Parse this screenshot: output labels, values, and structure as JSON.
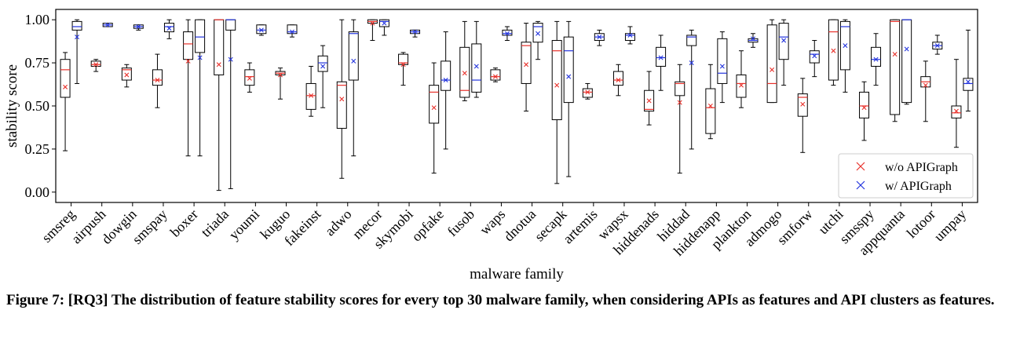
{
  "chart_data": {
    "type": "box",
    "ylabel": "stability score",
    "xlabel": "malware family",
    "ylim": [
      -0.06,
      1.06
    ],
    "yticks": [
      "0.00",
      "0.25",
      "0.50",
      "0.75",
      "1.00"
    ],
    "ytick_values": [
      0,
      0.25,
      0.5,
      0.75,
      1.0
    ],
    "legend": {
      "placement": "lower-right",
      "entries": [
        {
          "label": "w/o APIGraph",
          "color": "#e8302a"
        },
        {
          "label": "w/ APIGraph",
          "color": "#2233dd"
        }
      ]
    },
    "categories": [
      "smsreg",
      "airpush",
      "dowgin",
      "smspay",
      "boxer",
      "triada",
      "youmi",
      "kuguo",
      "fakeinst",
      "adwo",
      "mecor",
      "skymobi",
      "opfake",
      "fusob",
      "waps",
      "dnotua",
      "secapk",
      "artemis",
      "wapsx",
      "hiddenads",
      "hiddad",
      "hiddenapp",
      "plankton",
      "admogo",
      "smforw",
      "utchi",
      "smsspy",
      "appquanta",
      "lotoor",
      "umpay"
    ],
    "series": [
      {
        "name": "w/o APIGraph",
        "color": "#e8302a",
        "boxes": [
          [
            0.24,
            0.55,
            0.71,
            0.77,
            0.81,
            0.61
          ],
          [
            0.7,
            0.73,
            0.74,
            0.76,
            0.77,
            0.74
          ],
          [
            0.61,
            0.65,
            0.71,
            0.72,
            0.74,
            0.68
          ],
          [
            0.49,
            0.62,
            0.65,
            0.71,
            0.8,
            0.65
          ],
          [
            0.21,
            0.77,
            0.86,
            0.93,
            1.0,
            0.76
          ],
          [
            0.01,
            0.68,
            1.0,
            1.0,
            1.0,
            0.74
          ],
          [
            0.58,
            0.62,
            0.67,
            0.71,
            0.75,
            0.66
          ],
          [
            0.54,
            0.68,
            0.69,
            0.7,
            0.72,
            0.68
          ],
          [
            0.44,
            0.48,
            0.56,
            0.63,
            0.73,
            0.56
          ],
          [
            0.08,
            0.37,
            0.62,
            0.64,
            1.0,
            0.54
          ],
          [
            0.88,
            0.98,
            0.99,
            1.0,
            1.0,
            0.98
          ],
          [
            0.62,
            0.74,
            0.75,
            0.8,
            0.81,
            0.74
          ],
          [
            0.11,
            0.4,
            0.58,
            0.62,
            0.75,
            0.49
          ],
          [
            0.53,
            0.55,
            0.59,
            0.84,
            0.99,
            0.69
          ],
          [
            0.64,
            0.65,
            0.67,
            0.71,
            0.72,
            0.67
          ],
          [
            0.47,
            0.63,
            0.85,
            0.87,
            0.98,
            0.74
          ],
          [
            0.05,
            0.42,
            0.82,
            0.88,
            0.99,
            0.62
          ],
          [
            0.54,
            0.55,
            0.58,
            0.6,
            0.63,
            0.58
          ],
          [
            0.56,
            0.62,
            0.65,
            0.7,
            0.74,
            0.65
          ],
          [
            0.39,
            0.47,
            0.48,
            0.59,
            0.7,
            0.53
          ],
          [
            0.11,
            0.56,
            0.63,
            0.64,
            0.74,
            0.52
          ],
          [
            0.31,
            0.34,
            0.49,
            0.6,
            0.74,
            0.5
          ],
          [
            0.49,
            0.55,
            0.63,
            0.68,
            0.82,
            0.62
          ],
          [
            0.52,
            0.52,
            0.63,
            0.97,
            1.0,
            0.71
          ],
          [
            0.23,
            0.44,
            0.55,
            0.57,
            0.66,
            0.51
          ],
          [
            0.62,
            0.65,
            0.93,
            1.0,
            1.0,
            0.82
          ],
          [
            0.3,
            0.43,
            0.5,
            0.58,
            0.64,
            0.49
          ],
          [
            0.41,
            0.45,
            0.99,
            1.0,
            1.0,
            0.8
          ],
          [
            0.41,
            0.61,
            0.64,
            0.67,
            0.76,
            0.62
          ],
          [
            0.26,
            0.43,
            0.46,
            0.5,
            0.77,
            0.47
          ]
        ]
      },
      {
        "name": "w/ APIGraph",
        "color": "#2233dd",
        "boxes": [
          [
            0.63,
            0.94,
            0.96,
            0.99,
            1.0,
            0.9
          ],
          [
            0.96,
            0.96,
            0.97,
            0.98,
            0.98,
            0.97
          ],
          [
            0.94,
            0.95,
            0.96,
            0.97,
            0.97,
            0.96
          ],
          [
            0.89,
            0.93,
            0.96,
            0.98,
            1.0,
            0.95
          ],
          [
            0.21,
            0.81,
            0.9,
            1.0,
            1.0,
            0.78
          ],
          [
            0.02,
            0.94,
            1.0,
            1.0,
            1.0,
            0.77
          ],
          [
            0.91,
            0.92,
            0.94,
            0.97,
            0.97,
            0.94
          ],
          [
            0.9,
            0.92,
            0.93,
            0.97,
            0.97,
            0.93
          ],
          [
            0.49,
            0.7,
            0.75,
            0.79,
            0.85,
            0.73
          ],
          [
            0.21,
            0.65,
            0.92,
            0.93,
            1.0,
            0.76
          ],
          [
            0.91,
            0.96,
            0.99,
            1.0,
            1.0,
            0.98
          ],
          [
            0.9,
            0.92,
            0.93,
            0.94,
            0.94,
            0.93
          ],
          [
            0.25,
            0.59,
            0.65,
            0.76,
            0.93,
            0.65
          ],
          [
            0.55,
            0.58,
            0.65,
            0.86,
            0.99,
            0.73
          ],
          [
            0.88,
            0.91,
            0.92,
            0.94,
            0.96,
            0.92
          ],
          [
            0.77,
            0.87,
            0.96,
            0.98,
            0.99,
            0.92
          ],
          [
            0.09,
            0.52,
            0.82,
            0.9,
            0.99,
            0.67
          ],
          [
            0.85,
            0.88,
            0.9,
            0.92,
            0.94,
            0.9
          ],
          [
            0.86,
            0.88,
            0.91,
            0.92,
            0.96,
            0.91
          ],
          [
            0.59,
            0.73,
            0.78,
            0.84,
            0.91,
            0.78
          ],
          [
            0.25,
            0.85,
            0.9,
            0.91,
            0.94,
            0.75
          ],
          [
            0.52,
            0.63,
            0.69,
            0.89,
            0.93,
            0.73
          ],
          [
            0.84,
            0.87,
            0.88,
            0.89,
            0.92,
            0.89
          ],
          [
            0.62,
            0.77,
            0.9,
            0.98,
            1.0,
            0.88
          ],
          [
            0.67,
            0.75,
            0.8,
            0.82,
            0.88,
            0.79
          ],
          [
            0.58,
            0.71,
            0.96,
            0.99,
            1.0,
            0.85
          ],
          [
            0.62,
            0.73,
            0.77,
            0.84,
            0.92,
            0.77
          ],
          [
            0.51,
            0.52,
            1.0,
            1.0,
            1.0,
            0.83
          ],
          [
            0.8,
            0.83,
            0.85,
            0.87,
            0.91,
            0.85
          ],
          [
            0.47,
            0.59,
            0.63,
            0.66,
            0.94,
            0.64
          ]
        ]
      }
    ],
    "box_value_order": [
      "whisker_low",
      "q1",
      "median",
      "q3",
      "whisker_high",
      "mean"
    ],
    "mean_marker": "×",
    "grid": false
  },
  "caption": "Figure 7: [RQ3] The distribution of feature stability scores for every top 30 malware family, when considering APIs as features and API clusters as features."
}
